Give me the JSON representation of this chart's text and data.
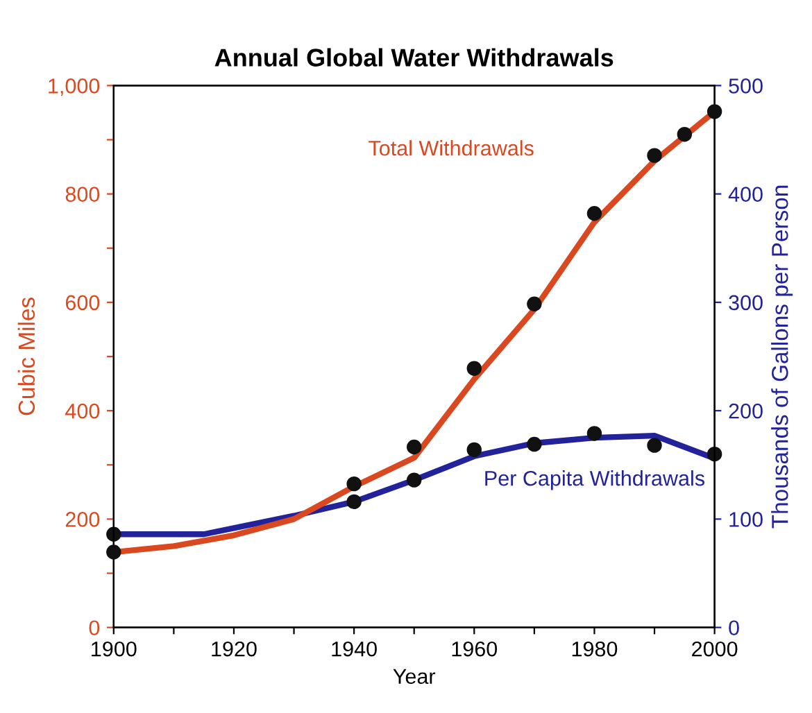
{
  "chart_data": {
    "type": "line",
    "title": "Annual Global Water Withdrawals",
    "xlabel": "Year",
    "ylabel": "Cubic Miles",
    "y2label": "Thousands of Gallons per Person",
    "xlim": [
      1900,
      2000
    ],
    "xticks": [
      1900,
      {
        "value": 1910,
        "label": null
      },
      1920,
      {
        "value": 1930,
        "label": null
      },
      1940,
      {
        "value": 1950,
        "label": null
      },
      1960,
      {
        "value": 1970,
        "label": null
      },
      1980,
      {
        "value": 1990,
        "label": null
      },
      2000
    ],
    "ylim": [
      0,
      1000
    ],
    "yticks": [
      0,
      {
        "value": 100,
        "label": null
      },
      200,
      {
        "value": 300,
        "label": null
      },
      400,
      {
        "value": 500,
        "label": null
      },
      600,
      {
        "value": 700,
        "label": null
      },
      800,
      {
        "value": 900,
        "label": null
      },
      {
        "value": 1000,
        "label": "1,000"
      }
    ],
    "y2lim": [
      0,
      500
    ],
    "y2ticks": [
      0,
      100,
      200,
      300,
      400,
      500
    ],
    "grid": false,
    "legend": false,
    "series": [
      {
        "name": "Total Withdrawals",
        "color": "#d9481f",
        "x": [
          1900,
          1910,
          1920,
          1930,
          1940,
          1950,
          1960,
          1970,
          1980,
          1990,
          2000
        ],
        "values": [
          139,
          150,
          170,
          200,
          260,
          313,
          458,
          587,
          748,
          861,
          952
        ]
      },
      {
        "name": "Per Capita Withdrawals",
        "axis": "y2",
        "color": "#22229a",
        "x": [
          1900,
          1915,
          1930,
          1940,
          1950,
          1960,
          1970,
          1980,
          1990,
          2000
        ],
        "values": [
          86,
          86,
          103,
          116,
          136,
          158,
          170,
          175,
          177,
          156
        ]
      },
      {
        "type": "scatter",
        "color": "#111111",
        "marker": "circle",
        "x": [
          1900,
          1940,
          1950,
          1960,
          1970,
          1980,
          1990,
          1995,
          2000
        ],
        "values": [
          139,
          265,
          333,
          478,
          597,
          764,
          871,
          910,
          952
        ]
      },
      {
        "type": "scatter",
        "axis": "y2",
        "color": "#111111",
        "marker": "circle",
        "x": [
          1900,
          1940,
          1950,
          1960,
          1970,
          1980,
          1990,
          2000
        ],
        "values": [
          86,
          116,
          136,
          164,
          169,
          179,
          168,
          160
        ]
      }
    ]
  }
}
